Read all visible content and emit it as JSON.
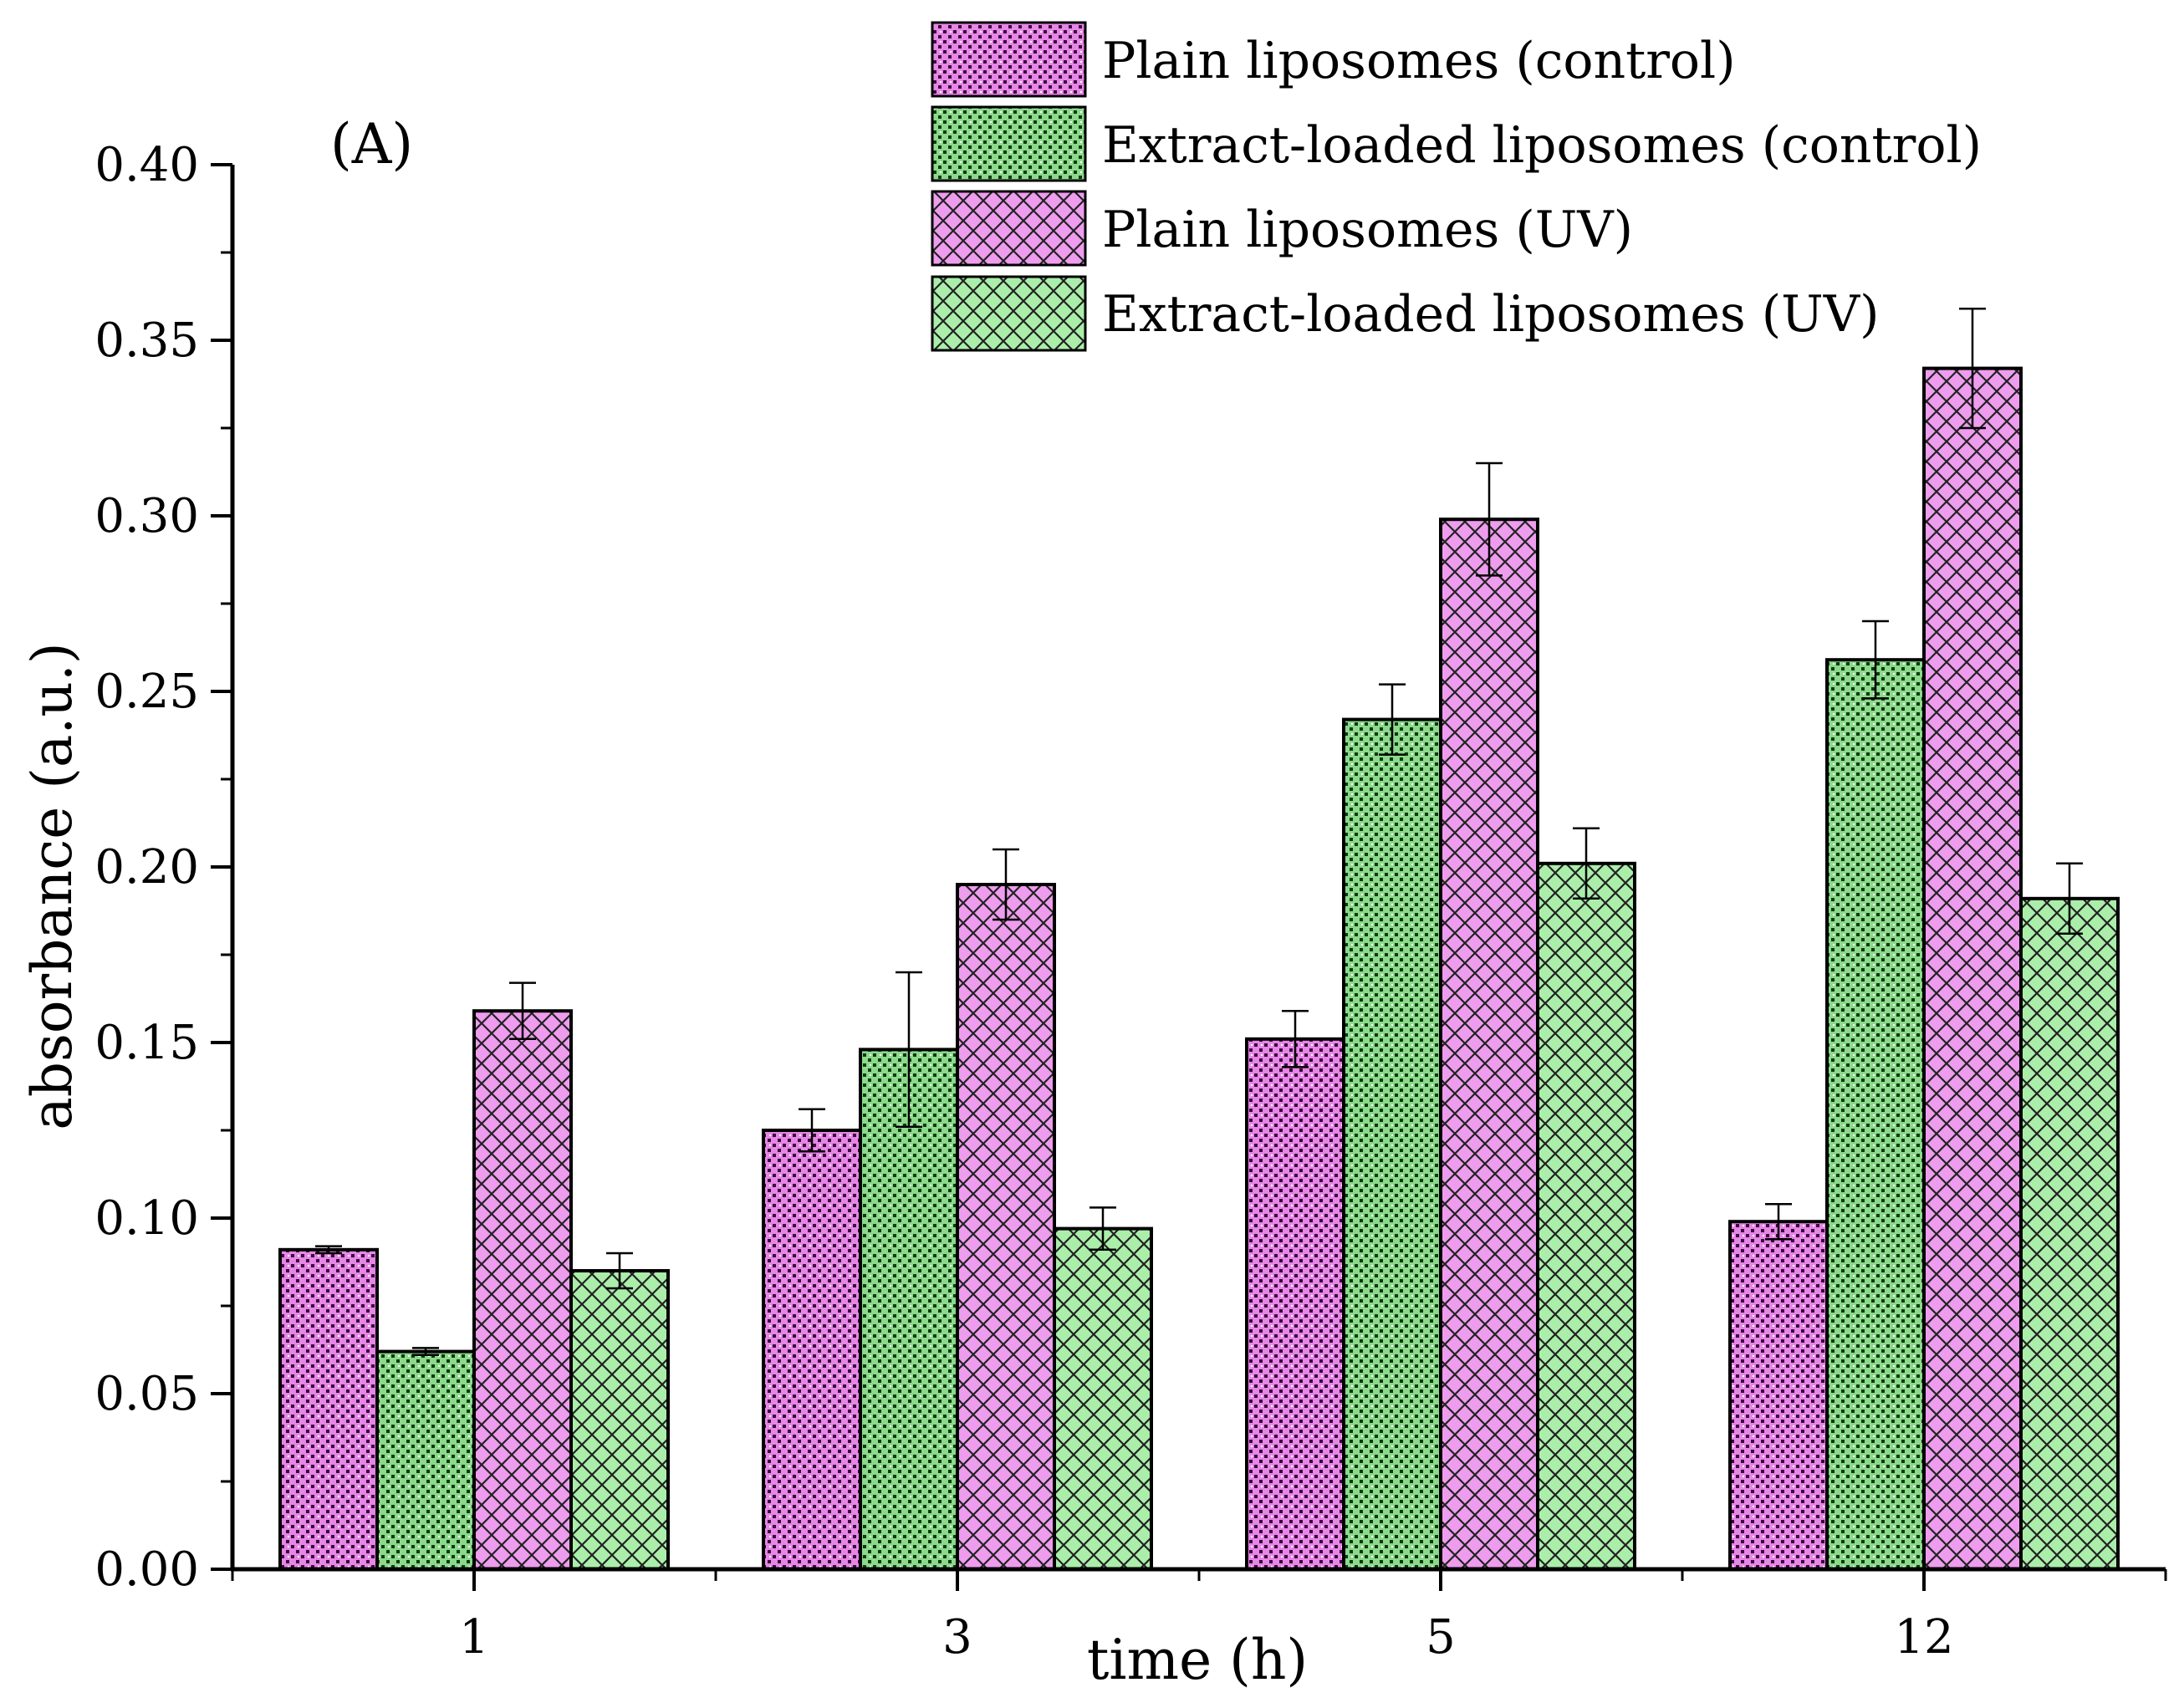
{
  "chart_data": {
    "type": "bar",
    "panel_label": "(A)",
    "xlabel": "time (h)",
    "ylabel": "absorbance (a.u.)",
    "ylim": [
      0,
      0.4
    ],
    "yticks": [
      "0.00",
      "0.05",
      "0.10",
      "0.15",
      "0.20",
      "0.25",
      "0.30",
      "0.35",
      "0.40"
    ],
    "categories": [
      "1",
      "3",
      "5",
      "12"
    ],
    "legend_position": "top-right",
    "series": [
      {
        "name": "Plain liposomes (control)",
        "color": "#e080e0",
        "pattern": "dense-dots",
        "values": [
          0.091,
          0.125,
          0.151,
          0.099
        ],
        "errors": [
          0.001,
          0.006,
          0.008,
          0.005
        ]
      },
      {
        "name": "Extract-loaded liposomes (control)",
        "color": "#90e090",
        "pattern": "dense-dots",
        "values": [
          0.062,
          0.148,
          0.242,
          0.259
        ],
        "errors": [
          0.001,
          0.022,
          0.01,
          0.011
        ]
      },
      {
        "name": "Plain liposomes (UV)",
        "color": "#ee99ee",
        "pattern": "crosshatch",
        "values": [
          0.159,
          0.195,
          0.299,
          0.342
        ],
        "errors": [
          0.008,
          0.01,
          0.016,
          0.017
        ]
      },
      {
        "name": "Extract-loaded liposomes (UV)",
        "color": "#a8eca8",
        "pattern": "crosshatch",
        "values": [
          0.085,
          0.097,
          0.201,
          0.191
        ],
        "errors": [
          0.005,
          0.006,
          0.01,
          0.01
        ]
      }
    ]
  }
}
